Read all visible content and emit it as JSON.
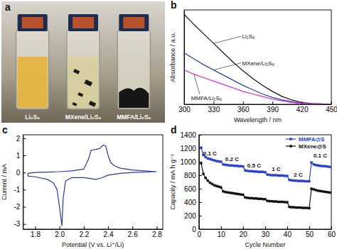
{
  "photo": {
    "title": "a",
    "labels": [
      "Li₂S₆",
      "MXene/Li₂S₆",
      "MMFA/Li₂S₆"
    ]
  },
  "chart_data": [
    {
      "type": "line",
      "title": "b",
      "x_label": "Wavelength / nm",
      "y_label": "Absorbance / a.u.",
      "x": [
        300,
        310,
        320,
        330,
        340,
        350,
        360,
        370,
        380,
        390,
        400,
        410,
        420,
        430,
        440,
        450
      ],
      "xlim": [
        300,
        450
      ],
      "xticks": [
        300,
        330,
        360,
        390,
        420,
        450
      ],
      "ylim": [
        0,
        1.1
      ],
      "tick_labels": "x",
      "series": [
        {
          "name": "Li₂S₆",
          "color": "#111111",
          "values": [
            1.05,
            0.93,
            0.82,
            0.71,
            0.6,
            0.49,
            0.39,
            0.3,
            0.22,
            0.15,
            0.09,
            0.05,
            0.02,
            0.01,
            0.005,
            0
          ]
        },
        {
          "name": "MXene/Li₂S₆",
          "color": "#2a3fb0",
          "values": [
            0.6,
            0.53,
            0.46,
            0.4,
            0.34,
            0.28,
            0.22,
            0.17,
            0.12,
            0.08,
            0.05,
            0.03,
            0.01,
            0.005,
            0,
            0
          ]
        },
        {
          "name": "MMFA/Li₂S₆",
          "color": "#d62ad6",
          "values": [
            0.4,
            0.35,
            0.31,
            0.27,
            0.23,
            0.19,
            0.15,
            0.12,
            0.09,
            0.06,
            0.04,
            0.02,
            0.01,
            0.005,
            0,
            0
          ]
        }
      ]
    },
    {
      "type": "line",
      "title": "c",
      "x_label": "Potential (V vs. Li⁺/Li)",
      "y_label": "Current / mA",
      "x": [
        2.8,
        2.6,
        2.5,
        2.4,
        2.35,
        2.3,
        2.25,
        2.2,
        2.1,
        2.05,
        2.03,
        2.02,
        2.0,
        1.98,
        1.95,
        1.9,
        1.8,
        1.74,
        1.74,
        1.8,
        1.9,
        2.0,
        2.1,
        2.2,
        2.24,
        2.26,
        2.3,
        2.33,
        2.36,
        2.38,
        2.4,
        2.42,
        2.45,
        2.5,
        2.6,
        2.7,
        2.8
      ],
      "xlim": [
        1.7,
        2.85
      ],
      "xticks": [
        1.8,
        {
          "value": 2,
          "label": "2.0"
        },
        2.2,
        2.4,
        2.6,
        2.8
      ],
      "ylim": [
        -3.3,
        2.2
      ],
      "yticks": [
        -3,
        -2,
        -1,
        0,
        1,
        2
      ],
      "series": [
        {
          "color": "#2a3a9b",
          "values": [
            0.05,
            0.0,
            -0.05,
            -0.15,
            -0.3,
            -0.4,
            -0.35,
            -0.3,
            -0.3,
            -0.5,
            -1.5,
            -3.1,
            -2.0,
            -1.0,
            -0.6,
            -0.4,
            -0.25,
            -0.2,
            -0.05,
            0.0,
            0.02,
            0.05,
            0.1,
            0.2,
            0.8,
            1.3,
            1.35,
            1.4,
            1.6,
            1.55,
            1.0,
            0.6,
            0.4,
            0.25,
            0.15,
            0.1,
            0.05
          ]
        }
      ]
    },
    {
      "type": "line",
      "title": "d",
      "x_label": "Cycle Number",
      "y_label": "Capacity / mA h g⁻¹",
      "x": [
        1,
        2,
        3,
        4,
        5,
        6,
        7,
        8,
        9,
        10,
        11,
        12,
        13,
        14,
        15,
        16,
        17,
        18,
        19,
        20,
        21,
        22,
        23,
        24,
        25,
        26,
        27,
        28,
        29,
        30,
        31,
        32,
        33,
        34,
        35,
        36,
        37,
        38,
        39,
        40,
        41,
        42,
        43,
        44,
        45,
        46,
        47,
        48,
        49,
        50,
        51,
        52,
        53,
        54,
        55,
        56,
        57,
        58,
        59,
        60
      ],
      "xlim": [
        0,
        60
      ],
      "xticks": [
        0,
        10,
        20,
        30,
        40,
        50,
        60
      ],
      "ylim": [
        0,
        1400
      ],
      "yticks": [
        0,
        200,
        400,
        600,
        800,
        1000,
        1200,
        1400
      ],
      "legend": "upper right",
      "annotations": [
        {
          "text": "0.1 C",
          "x": 5,
          "y": 1090
        },
        {
          "text": "0.2 C",
          "x": 15,
          "y": 1010
        },
        {
          "text": "0.5 C",
          "x": 25,
          "y": 920
        },
        {
          "text": "1 C",
          "x": 35,
          "y": 860
        },
        {
          "text": "2 C",
          "x": 45,
          "y": 780
        },
        {
          "text": "0.1 C",
          "x": 55,
          "y": 1060
        }
      ],
      "series": [
        {
          "name": "MMFA@S",
          "color": "#2a3fd6",
          "marker": "square",
          "values": [
            1210,
            1100,
            1070,
            1050,
            1040,
            1030,
            1020,
            1010,
            1005,
            1000,
            960,
            955,
            950,
            945,
            945,
            940,
            940,
            935,
            935,
            930,
            870,
            865,
            860,
            860,
            855,
            855,
            850,
            850,
            850,
            845,
            810,
            805,
            800,
            800,
            800,
            795,
            795,
            795,
            790,
            790,
            730,
            725,
            720,
            720,
            715,
            715,
            715,
            710,
            710,
            710,
            990,
            960,
            950,
            945,
            940,
            935,
            935,
            930,
            925,
            920
          ]
        },
        {
          "name": "MXene@S",
          "color": "#111111",
          "marker": "square",
          "values": [
            980,
            820,
            760,
            720,
            690,
            670,
            650,
            640,
            630,
            620,
            560,
            550,
            545,
            540,
            535,
            530,
            525,
            520,
            515,
            510,
            470,
            465,
            460,
            460,
            455,
            455,
            450,
            450,
            445,
            445,
            420,
            415,
            415,
            410,
            410,
            405,
            405,
            405,
            400,
            400,
            330,
            325,
            325,
            320,
            320,
            320,
            315,
            315,
            315,
            310,
            600,
            590,
            580,
            570,
            565,
            560,
            555,
            550,
            545,
            540
          ]
        }
      ]
    }
  ]
}
